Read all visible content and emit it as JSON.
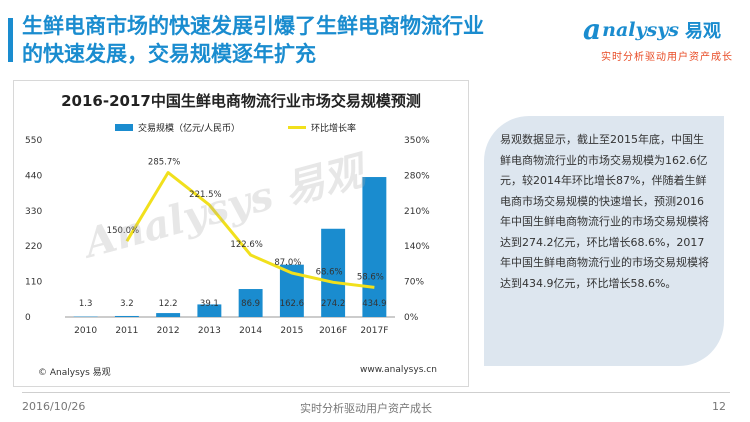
{
  "header": {
    "title_line1": "生鲜电商市场的快速发展引爆了生鲜电商物流行业",
    "title_line2": "的快速发展，交易规模逐年扩充"
  },
  "logo": {
    "mark": "a",
    "name": "nalysys",
    "cn": "易观",
    "tagline": "实时分析驱动用户资产成长"
  },
  "chart_data": {
    "type": "bar",
    "title": "2016-2017中国生鲜电商物流行业市场交易规模预测",
    "categories": [
      "2010",
      "2011",
      "2012",
      "2013",
      "2014",
      "2015",
      "2016F",
      "2017F"
    ],
    "series": [
      {
        "name": "交易规模（亿元/人民币）",
        "type": "bar",
        "axis": "left",
        "values": [
          1.3,
          3.2,
          12.2,
          39.1,
          86.9,
          162.6,
          274.2,
          434.9
        ],
        "labels": [
          "1.3",
          "3.2",
          "12.2",
          "39.1",
          "86.9",
          "162.6",
          "274.2",
          "434.9"
        ]
      },
      {
        "name": "环比增长率",
        "type": "line",
        "axis": "right",
        "values": [
          null,
          150.0,
          285.7,
          221.5,
          122.6,
          87.0,
          68.6,
          58.6
        ],
        "labels": [
          "",
          "150.0%",
          "285.7%",
          "221.5%",
          "122.6%",
          "87.0%",
          "68.6%",
          "58.6%"
        ]
      }
    ],
    "ylim": [
      0,
      550
    ],
    "yticks": [
      "0",
      "110",
      "220",
      "330",
      "440",
      "550"
    ],
    "y2lim": [
      0,
      350
    ],
    "y2ticks": [
      "0%",
      "70%",
      "140%",
      "210%",
      "280%",
      "350%"
    ],
    "colors": {
      "bar": "#1a8ccf",
      "line": "#f1e01c"
    },
    "watermark": "Analysys 易观"
  },
  "chart_footer": {
    "copyright": "© Analysys 易观",
    "website": "www.analysys.cn"
  },
  "info_text": "易观数据显示，截止至2015年底，中国生鲜电商物流行业的市场交易规模为162.6亿元，较2014年环比增长87%，伴随着生鲜电商市场交易规模的快速增长，预测2016年中国生鲜电商物流行业的市场交易规模将达到274.2亿元，环比增长68.6%，2017年中国生鲜电商物流行业的市场交易规模将达到434.9亿元，环比增长58.6%。",
  "footer": {
    "date": "2016/10/26",
    "slogan": "实时分析驱动用户资产成长",
    "page": "12"
  }
}
